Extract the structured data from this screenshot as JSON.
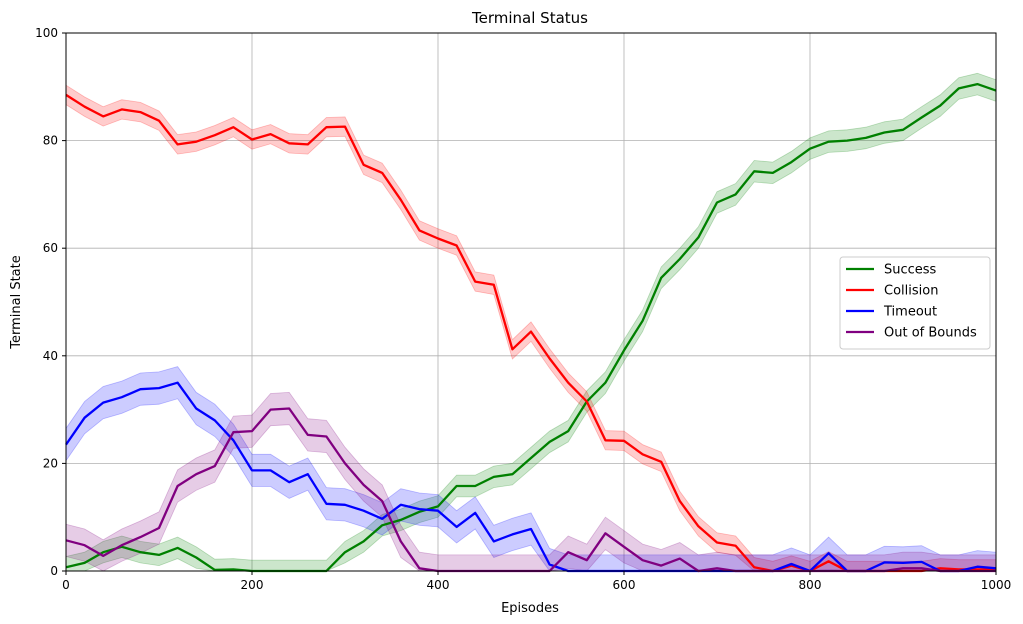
{
  "chart_data": {
    "type": "line",
    "title": "Terminal Status",
    "xlabel": "Episodes",
    "ylabel": "Terminal State",
    "xlim": [
      0,
      1000
    ],
    "ylim": [
      0,
      100
    ],
    "xticks": [
      0,
      200,
      400,
      600,
      800,
      1000
    ],
    "yticks": [
      0,
      20,
      40,
      60,
      80,
      100
    ],
    "grid": true,
    "legend_position": "center-right",
    "shaded_band": "variation band around each series (semi-transparent)",
    "series": [
      {
        "name": "Success",
        "color": "#008000",
        "band": 2,
        "x": [
          0,
          20,
          40,
          60,
          80,
          100,
          120,
          140,
          160,
          180,
          200,
          220,
          240,
          260,
          280,
          300,
          320,
          340,
          360,
          380,
          400,
          420,
          440,
          460,
          480,
          500,
          520,
          540,
          560,
          580,
          600,
          620,
          640,
          660,
          680,
          700,
          720,
          740,
          760,
          780,
          800,
          820,
          840,
          860,
          880,
          900,
          920,
          940,
          960,
          980,
          1000
        ],
        "y": [
          0.7,
          1.5,
          3.5,
          4.5,
          3.5,
          3.0,
          4.3,
          2.5,
          0.2,
          0.3,
          0.0,
          0.0,
          0.0,
          0.0,
          0.0,
          3.5,
          5.5,
          8.5,
          9.5,
          11.0,
          12.0,
          15.8,
          15.8,
          17.5,
          18.0,
          21.0,
          24.0,
          26.0,
          31.5,
          35.0,
          41.0,
          46.5,
          54.5,
          58.0,
          62.0,
          68.5,
          70.0,
          74.3,
          74.0,
          76.0,
          78.5,
          79.8,
          80.0,
          80.5,
          81.5,
          82.0,
          84.3,
          86.5,
          89.7,
          90.5,
          89.3
        ]
      },
      {
        "name": "Collision",
        "color": "#ff0000",
        "band": 1.8,
        "x": [
          0,
          20,
          40,
          60,
          80,
          100,
          120,
          140,
          160,
          180,
          200,
          220,
          240,
          260,
          280,
          300,
          320,
          340,
          360,
          380,
          400,
          420,
          440,
          460,
          480,
          500,
          520,
          540,
          560,
          580,
          600,
          620,
          640,
          660,
          680,
          700,
          720,
          740,
          760,
          780,
          800,
          820,
          840,
          860,
          880,
          900,
          920,
          940,
          960,
          980,
          1000
        ],
        "y": [
          88.5,
          86.3,
          84.5,
          85.8,
          85.3,
          83.7,
          79.3,
          79.8,
          81.0,
          82.5,
          80.2,
          81.2,
          79.5,
          79.3,
          82.5,
          82.6,
          75.5,
          74.0,
          69.0,
          63.3,
          61.8,
          60.5,
          53.8,
          53.2,
          41.2,
          44.5,
          39.5,
          35.0,
          31.5,
          24.3,
          24.2,
          21.7,
          20.3,
          13.0,
          8.3,
          5.3,
          4.7,
          0.7,
          0.0,
          1.0,
          0.0,
          1.8,
          0.0,
          0.0,
          0.0,
          0.0,
          0.0,
          0.5,
          0.3,
          0.3,
          0.3
        ]
      },
      {
        "name": "Timeout",
        "color": "#0000ff",
        "band": 3,
        "x": [
          0,
          20,
          40,
          60,
          80,
          100,
          120,
          140,
          160,
          180,
          200,
          220,
          240,
          260,
          280,
          300,
          320,
          340,
          360,
          380,
          400,
          420,
          440,
          460,
          480,
          500,
          520,
          540,
          560,
          580,
          600,
          620,
          640,
          660,
          680,
          700,
          720,
          740,
          760,
          780,
          800,
          820,
          840,
          860,
          880,
          900,
          920,
          940,
          960,
          980,
          1000
        ],
        "y": [
          23.5,
          28.5,
          31.3,
          32.3,
          33.8,
          34.0,
          35.0,
          30.2,
          28.0,
          24.3,
          18.7,
          18.7,
          16.5,
          18.0,
          12.5,
          12.3,
          11.2,
          9.7,
          12.3,
          11.5,
          11.2,
          8.2,
          10.8,
          5.5,
          6.8,
          7.8,
          1.2,
          0.0,
          0.0,
          0.0,
          0.0,
          0.0,
          0.0,
          0.0,
          0.0,
          0.0,
          0.0,
          0.0,
          0.0,
          1.3,
          0.0,
          3.3,
          0.0,
          0.0,
          1.6,
          1.5,
          1.7,
          0.0,
          0.0,
          0.8,
          0.5
        ]
      },
      {
        "name": "Out of Bounds",
        "color": "#800080",
        "band": 3,
        "x": [
          0,
          20,
          40,
          60,
          80,
          100,
          120,
          140,
          160,
          180,
          200,
          220,
          240,
          260,
          280,
          300,
          320,
          340,
          360,
          380,
          400,
          420,
          440,
          460,
          480,
          500,
          520,
          540,
          560,
          580,
          600,
          620,
          640,
          660,
          680,
          700,
          720,
          740,
          760,
          780,
          800,
          820,
          840,
          860,
          880,
          900,
          920,
          940,
          960,
          980,
          1000
        ],
        "y": [
          5.7,
          4.8,
          2.8,
          4.8,
          6.3,
          8.0,
          15.8,
          18.0,
          19.5,
          25.8,
          26.0,
          30.0,
          30.2,
          25.3,
          25.0,
          20.0,
          16.0,
          13.0,
          5.5,
          0.5,
          0.0,
          0.0,
          0.0,
          0.0,
          0.0,
          0.0,
          0.0,
          3.5,
          2.0,
          7.0,
          4.5,
          2.0,
          1.0,
          2.3,
          0.0,
          0.5,
          0.0,
          0.0,
          0.0,
          0.0,
          0.0,
          0.0,
          0.0,
          0.0,
          0.0,
          0.5,
          0.5,
          0.0,
          0.0,
          0.0,
          0.0
        ]
      }
    ]
  }
}
